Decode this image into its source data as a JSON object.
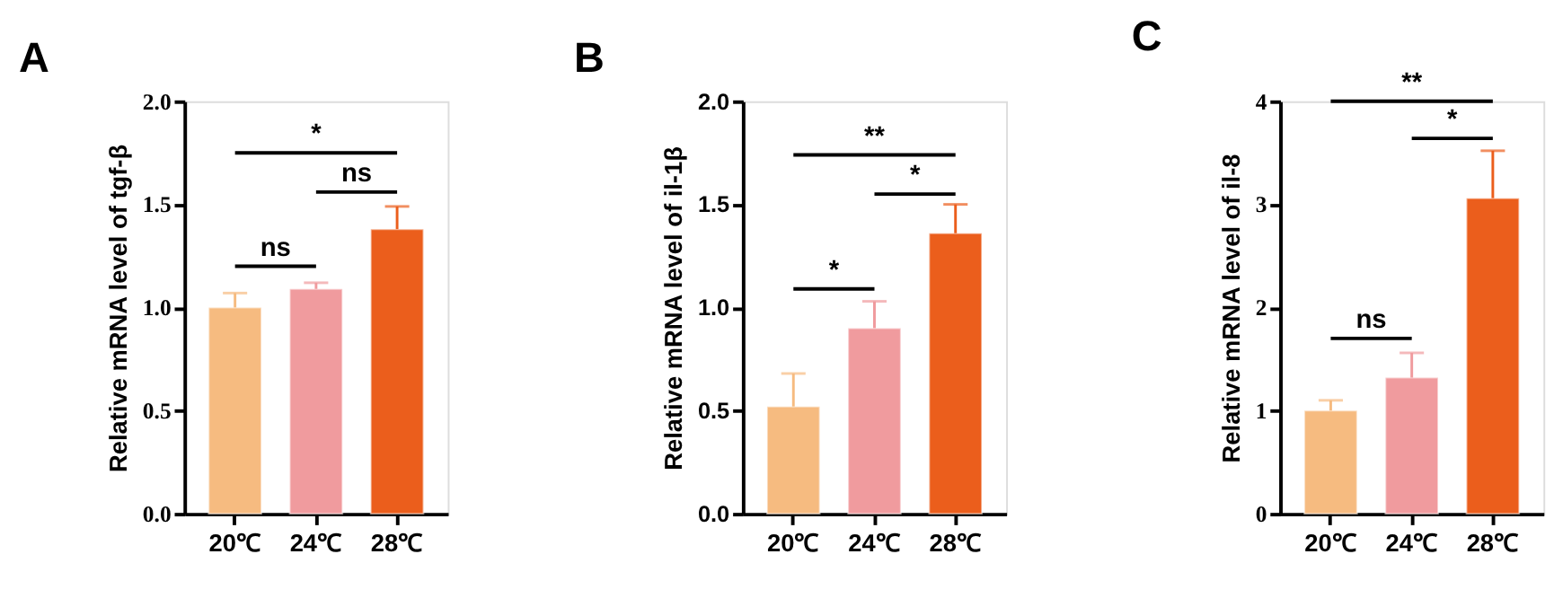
{
  "chart_data": [
    {
      "type": "bar",
      "title": "A",
      "ylabel": "Relative mRNA level of tgf-β",
      "categories": [
        "20℃",
        "24℃",
        "28℃"
      ],
      "values": [
        1.0,
        1.09,
        1.38
      ],
      "errors": [
        0.07,
        0.03,
        0.11
      ],
      "colors": [
        "#f6bb80",
        "#f09b9e",
        "#eb5e1c"
      ],
      "ylim": [
        0,
        2
      ],
      "yticks": [
        {
          "value": 0,
          "label": "0.0"
        },
        0.5,
        {
          "value": 1,
          "label": "1.0"
        },
        1.5,
        {
          "value": 2,
          "label": "2.0"
        }
      ],
      "annotations": [
        "*",
        "ns",
        "ns"
      ],
      "grid": false
    },
    {
      "type": "bar",
      "title": "B",
      "ylabel": "Relative mRNA level of il-1β",
      "categories": [
        "20℃",
        "24℃",
        "28℃"
      ],
      "values": [
        0.52,
        0.9,
        1.36
      ],
      "errors": [
        0.16,
        0.13,
        0.14
      ],
      "colors": [
        "#f6bb80",
        "#f09b9e",
        "#eb5e1c"
      ],
      "ylim": [
        0,
        2
      ],
      "yticks": [
        {
          "value": 0,
          "label": "0.0"
        },
        0.5,
        {
          "value": 1,
          "label": "1.0"
        },
        1.5,
        {
          "value": 2,
          "label": "2.0"
        }
      ],
      "annotations": [
        "**",
        "*",
        "*"
      ],
      "grid": false
    },
    {
      "type": "bar",
      "title": "C",
      "ylabel": "Relative mRNA level of il-8",
      "categories": [
        "20℃",
        "24℃",
        "28℃"
      ],
      "values": [
        1.0,
        1.32,
        3.06
      ],
      "errors": [
        0.1,
        0.24,
        0.46
      ],
      "colors": [
        "#f6bb80",
        "#f09b9e",
        "#eb5e1c"
      ],
      "ylim": [
        0,
        4
      ],
      "yticks": [
        0,
        1,
        2,
        3,
        4
      ],
      "annotations": [
        "**",
        "*",
        "ns"
      ],
      "grid": false
    }
  ]
}
